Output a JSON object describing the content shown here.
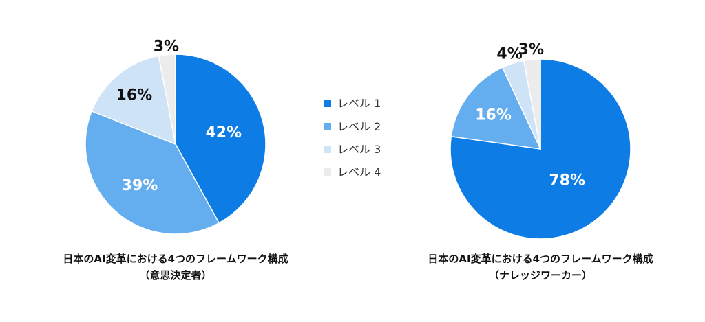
{
  "legend": {
    "items": [
      {
        "label": "レベル 1",
        "color": "#0e7ce5"
      },
      {
        "label": "レベル 2",
        "color": "#64aeef"
      },
      {
        "label": "レベル 3",
        "color": "#cfe3f7"
      },
      {
        "label": "レベル 4",
        "color": "#ececec"
      }
    ]
  },
  "chart_data": [
    {
      "type": "pie",
      "title": "日本のAI変革における4つのフレームワーク構成",
      "subtitle": "（意思決定者）",
      "categories": [
        "レベル 1",
        "レベル 2",
        "レベル 3",
        "レベル 4"
      ],
      "values": [
        42,
        39,
        16,
        3
      ],
      "labels": [
        "42%",
        "39%",
        "16%",
        "3%"
      ],
      "start": "12 o'clock, clockwise"
    },
    {
      "type": "pie",
      "title": "日本のAI変革における4つのフレームワーク構成",
      "subtitle": "（ナレッジワーカー）",
      "categories": [
        "レベル 1",
        "レベル 2",
        "レベル 3",
        "レベル 4"
      ],
      "values": [
        78,
        16,
        4,
        3
      ],
      "labels": [
        "78%",
        "16%",
        "4%",
        "3%"
      ],
      "start": "12 o'clock, clockwise"
    }
  ]
}
